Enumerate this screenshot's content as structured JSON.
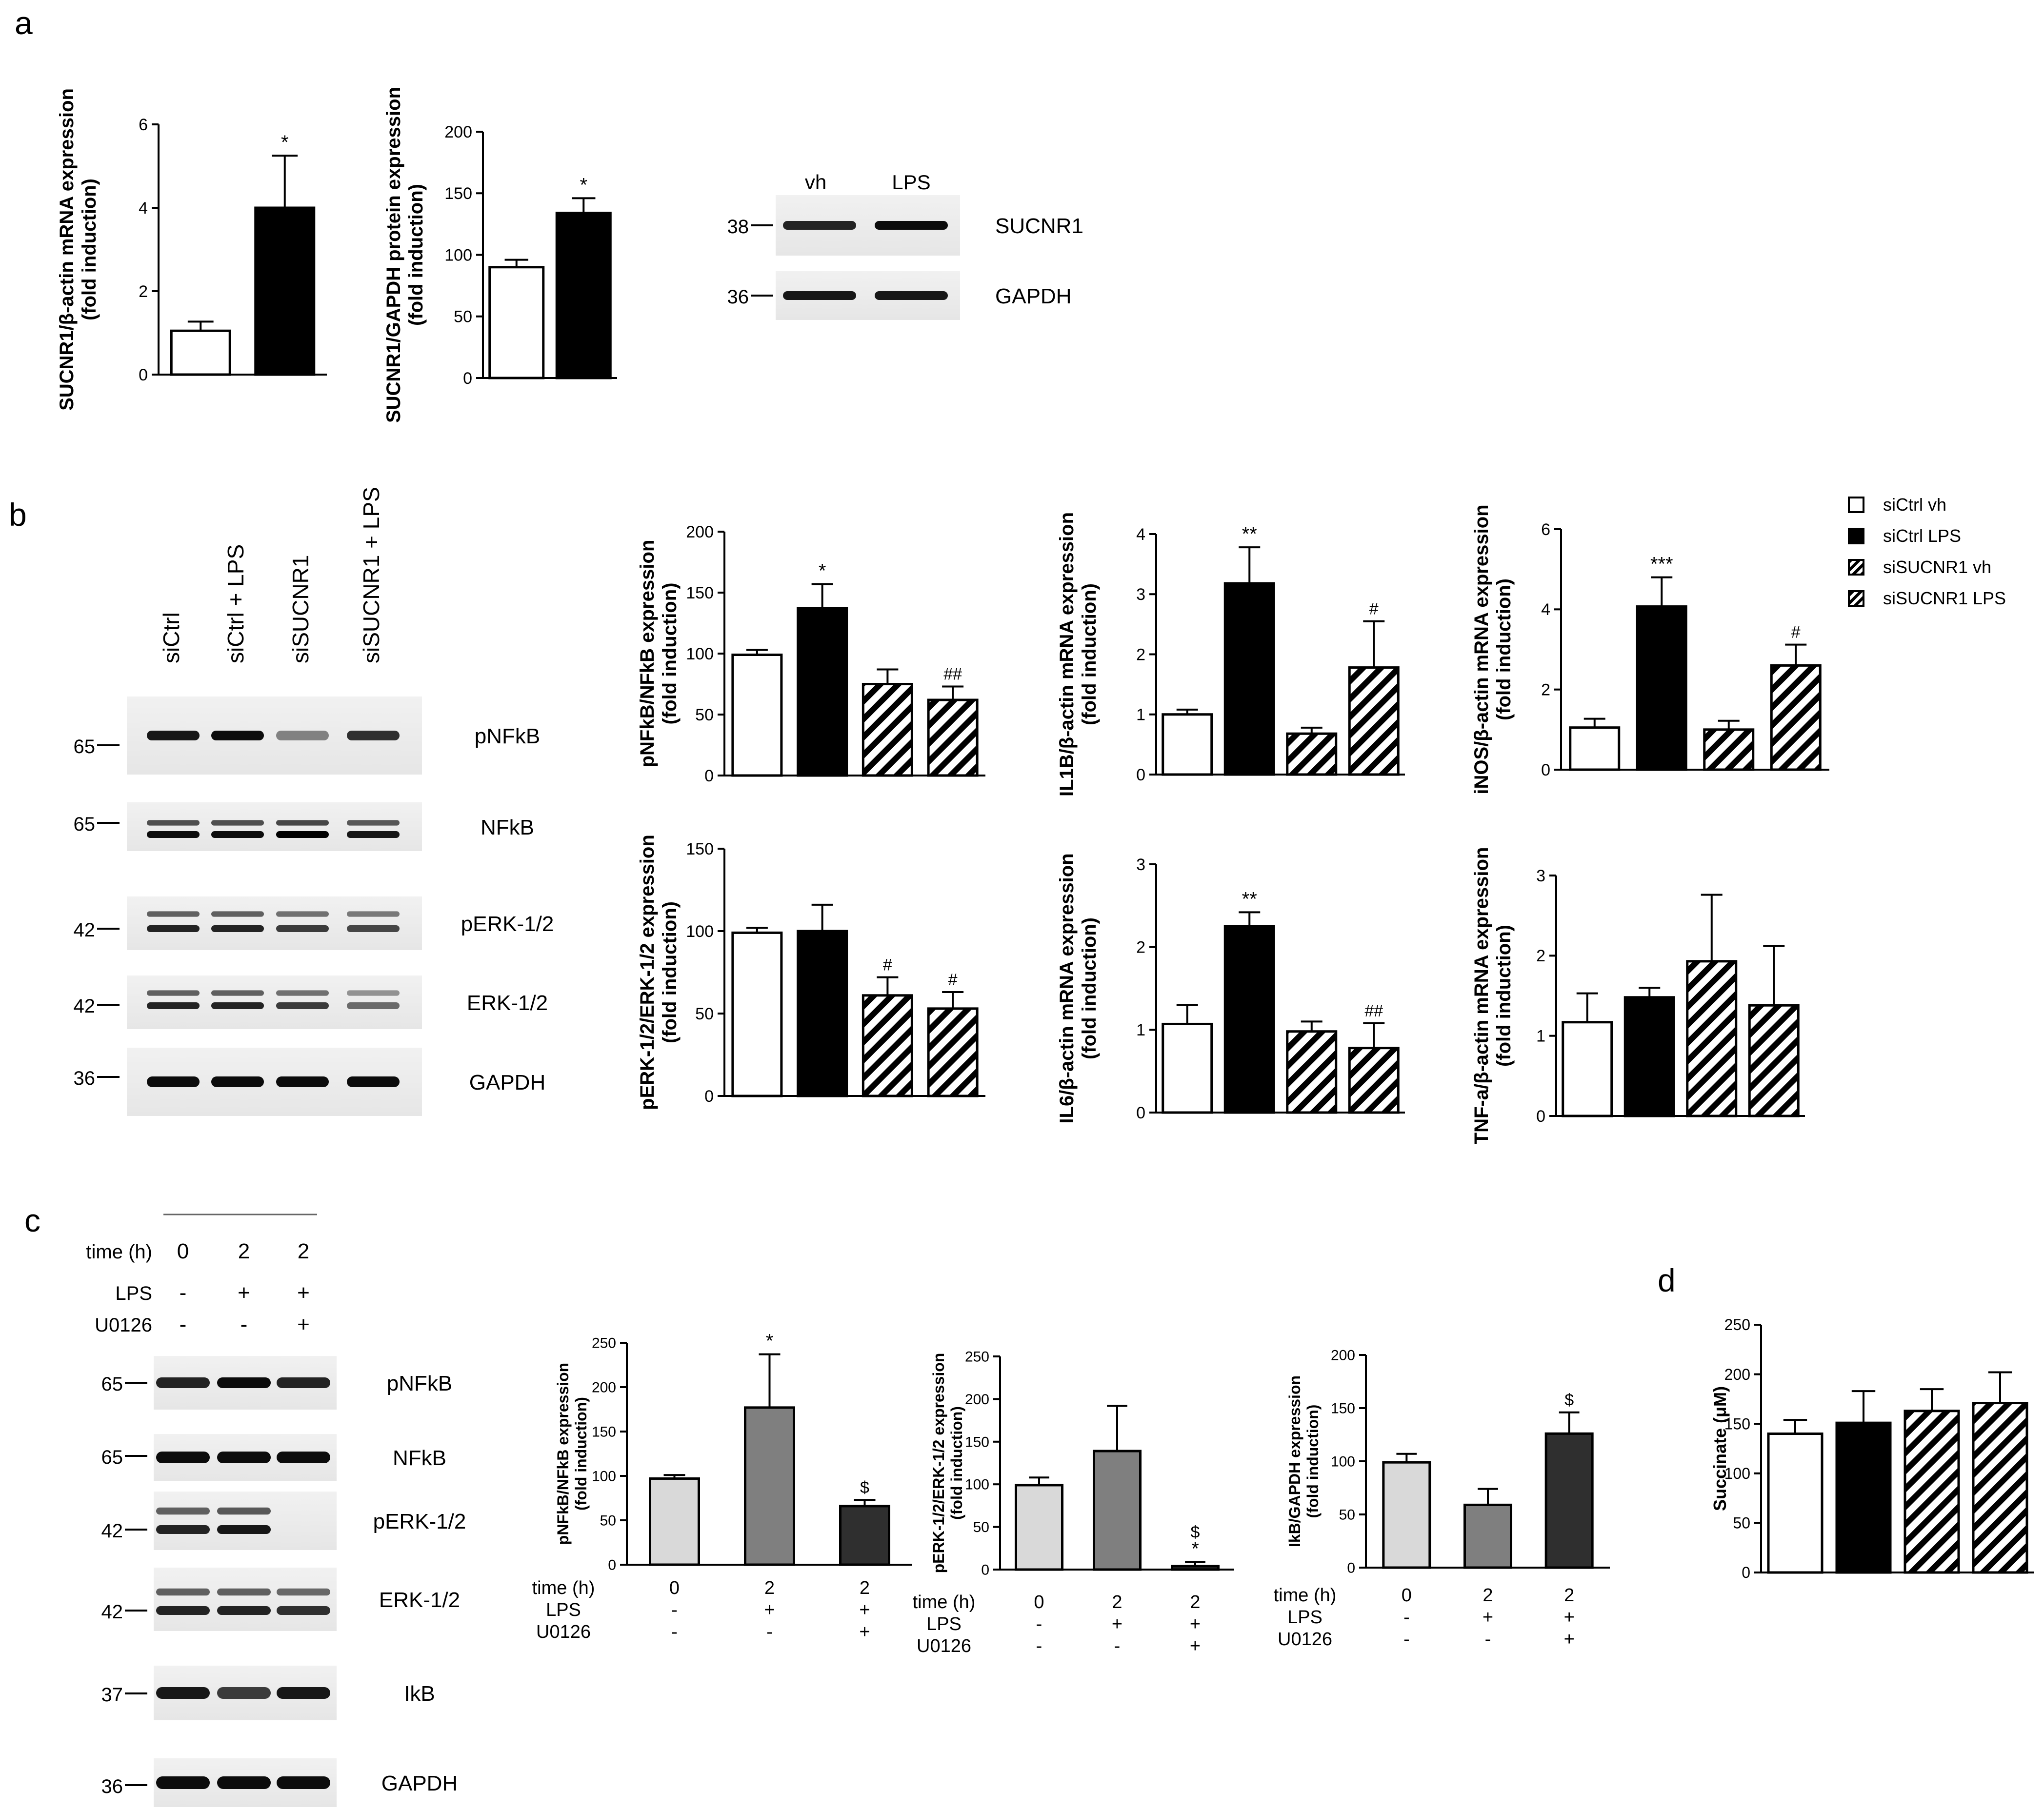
{
  "panel_labels": [
    "a",
    "b",
    "c",
    "d"
  ],
  "blots": {
    "a": {
      "lanes": [
        "vh",
        "LPS"
      ],
      "rows": [
        {
          "marker": "38",
          "protein": "SUCNR1"
        },
        {
          "marker": "36",
          "protein": "GAPDH"
        }
      ]
    },
    "b": {
      "lanes": [
        "siCtrl",
        "siCtrl + LPS",
        "siSUCNR1",
        "siSUCNR1 + LPS"
      ],
      "rows": [
        {
          "marker": "65",
          "protein": "pNFkB"
        },
        {
          "marker": "65",
          "protein": "NFkB"
        },
        {
          "marker": "42",
          "protein": "pERK-1/2"
        },
        {
          "marker": "42",
          "protein": "ERK-1/2"
        },
        {
          "marker": "36",
          "protein": "GAPDH"
        }
      ]
    },
    "c": {
      "conditions": {
        "labels": [
          "time (h)",
          "LPS",
          "U0126"
        ],
        "values": [
          [
            "0",
            "2",
            "2"
          ],
          [
            "-",
            "+",
            "+"
          ],
          [
            "-",
            "-",
            "+"
          ]
        ]
      },
      "rows": [
        {
          "marker": "65",
          "protein": "pNFkB"
        },
        {
          "marker": "65",
          "protein": "NFkB"
        },
        {
          "marker": "42",
          "protein": "pERK-1/2"
        },
        {
          "marker": "42",
          "protein": "ERK-1/2"
        },
        {
          "marker": "37",
          "protein": "IkB"
        },
        {
          "marker": "36",
          "protein": "GAPDH"
        }
      ]
    }
  },
  "legend": {
    "placement": "top-right",
    "entries": [
      "siCtrl vh",
      "siCtrl LPS",
      "siSUCNR1 vh",
      "siSUCNR1 LPS"
    ]
  },
  "colors": {
    "white": "#ffffff",
    "black": "#000000",
    "light_gray": "#d9d9d9",
    "mid_gray": "#7f7f7f",
    "dark_gray": "#2f2f2f"
  },
  "chart_data": [
    {
      "type": "bar",
      "panel": "a",
      "ylabel": [
        "SUCNR1/β-actin mRNA expression",
        "(fold induction)"
      ],
      "ylim": [
        0,
        6
      ],
      "yticks": [
        0,
        2,
        4,
        6
      ],
      "values": [
        1.05,
        4.0
      ],
      "errors": [
        0.22,
        1.25
      ],
      "annotations": [
        "",
        "*"
      ],
      "fills": [
        "white",
        "black"
      ]
    },
    {
      "type": "bar",
      "panel": "a",
      "ylabel": [
        "SUCNR1/GAPDH protein expression",
        "(fold induction)"
      ],
      "ylim": [
        0,
        200
      ],
      "yticks": [
        0,
        50,
        100,
        150,
        200
      ],
      "values": [
        90,
        134
      ],
      "errors": [
        6,
        12
      ],
      "annotations": [
        "",
        "*"
      ],
      "fills": [
        "white",
        "black"
      ]
    },
    {
      "type": "bar",
      "panel": "b",
      "ylabel": [
        "pNFkB/NFkB expression",
        "(fold induction)"
      ],
      "ylim": [
        0,
        200
      ],
      "yticks": [
        0,
        50,
        100,
        150,
        200
      ],
      "values": [
        99,
        137,
        75,
        62
      ],
      "errors": [
        4,
        20,
        12,
        11
      ],
      "annotations": [
        "",
        "*",
        "",
        "##"
      ],
      "fills": [
        "white",
        "black",
        "hatch",
        "hatch"
      ]
    },
    {
      "type": "bar",
      "panel": "b",
      "ylabel": [
        "IL1B/β-actin mRNA expression",
        "(fold induction)"
      ],
      "ylim": [
        0,
        4
      ],
      "yticks": [
        0,
        1,
        2,
        3,
        4
      ],
      "values": [
        1.0,
        3.18,
        0.68,
        1.78
      ],
      "errors": [
        0.08,
        0.6,
        0.1,
        0.77
      ],
      "annotations": [
        "",
        "**",
        "",
        "#"
      ],
      "fills": [
        "white",
        "black",
        "hatch",
        "hatch"
      ]
    },
    {
      "type": "bar",
      "panel": "b",
      "ylabel": [
        "iNOS/β-actin mRNA expression",
        "(fold induction)"
      ],
      "ylim": [
        0,
        6
      ],
      "yticks": [
        0,
        2,
        4,
        6
      ],
      "values": [
        1.05,
        4.07,
        1.0,
        2.6
      ],
      "errors": [
        0.22,
        0.73,
        0.22,
        0.52
      ],
      "annotations": [
        "",
        "***",
        "",
        "#"
      ],
      "fills": [
        "white",
        "black",
        "hatch",
        "hatch"
      ]
    },
    {
      "type": "bar",
      "panel": "b",
      "ylabel": [
        "pERK-1/2/ERK-1/2 expression",
        "(fold induction)"
      ],
      "ylim": [
        0,
        150
      ],
      "yticks": [
        0,
        50,
        100,
        150
      ],
      "values": [
        99,
        100,
        61,
        53
      ],
      "errors": [
        3,
        16,
        11,
        10
      ],
      "annotations": [
        "",
        "",
        "#",
        "#"
      ],
      "fills": [
        "white",
        "black",
        "hatch",
        "hatch"
      ]
    },
    {
      "type": "bar",
      "panel": "b",
      "ylabel": [
        "IL6/β-actin mRNA expression",
        "(fold induction)"
      ],
      "ylim": [
        0,
        3
      ],
      "yticks": [
        0,
        1,
        2,
        3
      ],
      "values": [
        1.07,
        2.25,
        0.98,
        0.78
      ],
      "errors": [
        0.23,
        0.17,
        0.12,
        0.3
      ],
      "annotations": [
        "",
        "**",
        "",
        "##"
      ],
      "fills": [
        "white",
        "black",
        "hatch",
        "hatch"
      ]
    },
    {
      "type": "bar",
      "panel": "b",
      "ylabel": [
        "TNF-a/β-actin mRNA expression",
        "(fold induction)"
      ],
      "ylim": [
        0,
        3
      ],
      "yticks": [
        0,
        1,
        2,
        3
      ],
      "values": [
        1.17,
        1.48,
        1.93,
        1.38
      ],
      "errors": [
        0.36,
        0.12,
        0.83,
        0.74
      ],
      "annotations": [
        "",
        "",
        "",
        ""
      ],
      "fills": [
        "white",
        "black",
        "hatch",
        "hatch"
      ]
    },
    {
      "type": "bar",
      "panel": "c",
      "ylabel": [
        "pNFkB/NFkB expression",
        "(fold induction)"
      ],
      "ylim": [
        0,
        250
      ],
      "yticks": [
        0,
        50,
        100,
        150,
        200,
        250
      ],
      "values": [
        97,
        177,
        66
      ],
      "errors": [
        4,
        60,
        7
      ],
      "annotations": [
        "",
        "*",
        "$"
      ],
      "fills": [
        "light_gray",
        "mid_gray",
        "dark_gray"
      ],
      "conditions": {
        "labels": [
          "time (h)",
          "LPS",
          "U0126"
        ],
        "values": [
          [
            "0",
            "2",
            "2"
          ],
          [
            "-",
            "+",
            "+"
          ],
          [
            "-",
            "-",
            "+"
          ]
        ]
      }
    },
    {
      "type": "bar",
      "panel": "c",
      "ylabel": [
        "pERK-1/2/ERK-1/2 expression",
        "(fold induction)"
      ],
      "ylim": [
        0,
        250
      ],
      "yticks": [
        0,
        50,
        100,
        150,
        200,
        250
      ],
      "values": [
        99,
        139,
        4
      ],
      "errors": [
        9,
        53,
        5
      ],
      "annotations": [
        "",
        "",
        "$\n*"
      ],
      "fills": [
        "light_gray",
        "mid_gray",
        "dark_gray"
      ],
      "conditions": {
        "labels": [
          "time (h)",
          "LPS",
          "U0126"
        ],
        "values": [
          [
            "0",
            "2",
            "2"
          ],
          [
            "-",
            "+",
            "+"
          ],
          [
            "-",
            "-",
            "+"
          ]
        ]
      }
    },
    {
      "type": "bar",
      "panel": "c",
      "ylabel": [
        "IkB/GAPDH expression",
        "(fold induction)"
      ],
      "ylim": [
        0,
        200
      ],
      "yticks": [
        0,
        50,
        100,
        150,
        200
      ],
      "values": [
        99,
        59,
        126
      ],
      "errors": [
        8,
        15,
        20
      ],
      "annotations": [
        "",
        "",
        "$"
      ],
      "fills": [
        "light_gray",
        "mid_gray",
        "dark_gray"
      ],
      "conditions": {
        "labels": [
          "time (h)",
          "LPS",
          "U0126"
        ],
        "values": [
          [
            "0",
            "2",
            "2"
          ],
          [
            "-",
            "+",
            "+"
          ],
          [
            "-",
            "-",
            "+"
          ]
        ]
      }
    },
    {
      "type": "bar",
      "panel": "d",
      "ylabel": [
        "Succinate (μM)"
      ],
      "ylim": [
        0,
        250
      ],
      "yticks": [
        0,
        50,
        100,
        150,
        200,
        250
      ],
      "values": [
        140,
        151,
        163,
        171
      ],
      "errors": [
        14,
        32,
        22,
        31
      ],
      "annotations": [
        "",
        "",
        "",
        ""
      ],
      "fills": [
        "white",
        "black",
        "hatch",
        "hatch"
      ]
    }
  ]
}
